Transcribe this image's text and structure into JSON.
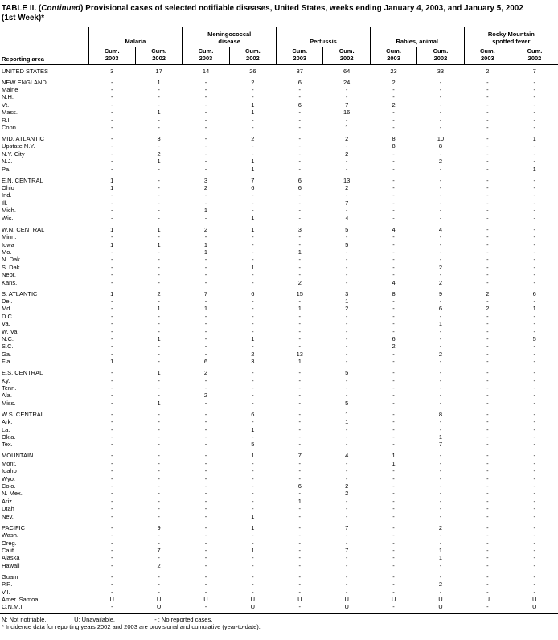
{
  "title": {
    "pre": "TABLE II. (",
    "continued": "Continued",
    "post": ") Provisional cases of selected notifiable diseases, United States, weeks ending January 4, 2003, and January 5, 2002",
    "line2": "(1st Week)*"
  },
  "header": {
    "reporting_area_label": "Reporting area",
    "groups": [
      {
        "label": "Malaria",
        "lines": [
          "Malaria"
        ]
      },
      {
        "label": "Meningococcal disease",
        "lines": [
          "Meningococcal",
          "disease"
        ]
      },
      {
        "label": "Pertussis",
        "lines": [
          "Pertussis"
        ]
      },
      {
        "label": "Rabies, animal",
        "lines": [
          "Rabies, animal"
        ]
      },
      {
        "label": "Rocky Mountain spotted fever",
        "lines": [
          "Rocky Mountain",
          "spotted fever"
        ]
      }
    ],
    "subcolumns": [
      {
        "lines": [
          "Cum.",
          "2003"
        ]
      },
      {
        "lines": [
          "Cum.",
          "2002"
        ]
      }
    ]
  },
  "sections": [
    {
      "rows": [
        {
          "area": "UNITED STATES",
          "values": [
            "3",
            "17",
            "14",
            "26",
            "37",
            "64",
            "23",
            "33",
            "2",
            "7"
          ]
        }
      ]
    },
    {
      "rows": [
        {
          "area": "NEW ENGLAND",
          "values": [
            "-",
            "1",
            "-",
            "2",
            "6",
            "24",
            "2",
            "-",
            "-",
            "-"
          ]
        },
        {
          "area": "Maine",
          "values": [
            "-",
            "-",
            "-",
            "-",
            "-",
            "-",
            "-",
            "-",
            "-",
            "-"
          ]
        },
        {
          "area": "N.H.",
          "values": [
            "-",
            "-",
            "-",
            "-",
            "-",
            "-",
            "-",
            "-",
            "-",
            "-"
          ]
        },
        {
          "area": "Vt.",
          "values": [
            "-",
            "-",
            "-",
            "1",
            "6",
            "7",
            "2",
            "-",
            "-",
            "-"
          ]
        },
        {
          "area": "Mass.",
          "values": [
            "-",
            "1",
            "-",
            "1",
            "-",
            "16",
            "-",
            "-",
            "-",
            "-"
          ]
        },
        {
          "area": "R.I.",
          "values": [
            "-",
            "-",
            "-",
            "-",
            "-",
            "-",
            "-",
            "-",
            "-",
            "-"
          ]
        },
        {
          "area": "Conn.",
          "values": [
            "-",
            "-",
            "-",
            "-",
            "-",
            "1",
            "-",
            "-",
            "-",
            "-"
          ]
        }
      ]
    },
    {
      "rows": [
        {
          "area": "MID. ATLANTIC",
          "values": [
            "-",
            "3",
            "-",
            "2",
            "-",
            "2",
            "8",
            "10",
            "-",
            "1"
          ]
        },
        {
          "area": "Upstate N.Y.",
          "values": [
            "-",
            "-",
            "-",
            "-",
            "-",
            "-",
            "8",
            "8",
            "-",
            "-"
          ]
        },
        {
          "area": "N.Y. City",
          "values": [
            "-",
            "2",
            "-",
            "-",
            "-",
            "2",
            "-",
            "-",
            "-",
            "-"
          ]
        },
        {
          "area": "N.J.",
          "values": [
            "-",
            "1",
            "-",
            "1",
            "-",
            "-",
            "-",
            "2",
            "-",
            "-"
          ]
        },
        {
          "area": "Pa.",
          "values": [
            "-",
            "-",
            "-",
            "1",
            "-",
            "-",
            "-",
            "-",
            "-",
            "1"
          ]
        }
      ]
    },
    {
      "rows": [
        {
          "area": "E.N. CENTRAL",
          "values": [
            "1",
            "-",
            "3",
            "7",
            "6",
            "13",
            "-",
            "-",
            "-",
            "-"
          ]
        },
        {
          "area": "Ohio",
          "values": [
            "1",
            "-",
            "2",
            "6",
            "6",
            "2",
            "-",
            "-",
            "-",
            "-"
          ]
        },
        {
          "area": "Ind.",
          "values": [
            "-",
            "-",
            "-",
            "-",
            "-",
            "-",
            "-",
            "-",
            "-",
            "-"
          ]
        },
        {
          "area": "Ill.",
          "values": [
            "-",
            "-",
            "-",
            "-",
            "-",
            "7",
            "-",
            "-",
            "-",
            "-"
          ]
        },
        {
          "area": "Mich.",
          "values": [
            "-",
            "-",
            "1",
            "-",
            "-",
            "-",
            "-",
            "-",
            "-",
            "-"
          ]
        },
        {
          "area": "Wis.",
          "values": [
            "-",
            "-",
            "-",
            "1",
            "-",
            "4",
            "-",
            "-",
            "-",
            "-"
          ]
        }
      ]
    },
    {
      "rows": [
        {
          "area": "W.N. CENTRAL",
          "values": [
            "1",
            "1",
            "2",
            "1",
            "3",
            "5",
            "4",
            "4",
            "-",
            "-"
          ]
        },
        {
          "area": "Minn.",
          "values": [
            "-",
            "-",
            "-",
            "-",
            "-",
            "-",
            "-",
            "-",
            "-",
            "-"
          ]
        },
        {
          "area": "Iowa",
          "values": [
            "1",
            "1",
            "1",
            "-",
            "-",
            "5",
            "-",
            "-",
            "-",
            "-"
          ]
        },
        {
          "area": "Mo.",
          "values": [
            "-",
            "-",
            "1",
            "-",
            "1",
            "-",
            "-",
            "-",
            "-",
            "-"
          ]
        },
        {
          "area": "N. Dak.",
          "values": [
            "-",
            "-",
            "-",
            "-",
            "-",
            "-",
            "-",
            "-",
            "-",
            "-"
          ]
        },
        {
          "area": "S. Dak.",
          "values": [
            "-",
            "-",
            "-",
            "1",
            "-",
            "-",
            "-",
            "2",
            "-",
            "-"
          ]
        },
        {
          "area": "Nebr.",
          "values": [
            "-",
            "-",
            "-",
            "-",
            "-",
            "-",
            "-",
            "-",
            "-",
            "-"
          ]
        },
        {
          "area": "Kans.",
          "values": [
            "-",
            "-",
            "-",
            "-",
            "2",
            "-",
            "4",
            "2",
            "-",
            "-"
          ]
        }
      ]
    },
    {
      "rows": [
        {
          "area": "S. ATLANTIC",
          "values": [
            "1",
            "2",
            "7",
            "6",
            "15",
            "3",
            "8",
            "9",
            "2",
            "6"
          ]
        },
        {
          "area": "Del.",
          "values": [
            "-",
            "-",
            "-",
            "-",
            "-",
            "1",
            "-",
            "-",
            "-",
            "-"
          ]
        },
        {
          "area": "Md.",
          "values": [
            "-",
            "1",
            "1",
            "-",
            "1",
            "2",
            "-",
            "6",
            "2",
            "1"
          ]
        },
        {
          "area": "D.C.",
          "values": [
            "-",
            "-",
            "-",
            "-",
            "-",
            "-",
            "-",
            "-",
            "-",
            "-"
          ]
        },
        {
          "area": "Va.",
          "values": [
            "-",
            "-",
            "-",
            "-",
            "-",
            "-",
            "-",
            "1",
            "-",
            "-"
          ]
        },
        {
          "area": "W. Va.",
          "values": [
            "-",
            "-",
            "-",
            "-",
            "-",
            "-",
            "-",
            "-",
            "-",
            "-"
          ]
        },
        {
          "area": "N.C.",
          "values": [
            "-",
            "1",
            "-",
            "1",
            "-",
            "-",
            "6",
            "-",
            "-",
            "5"
          ]
        },
        {
          "area": "S.C.",
          "values": [
            "-",
            "-",
            "-",
            "-",
            "-",
            "-",
            "2",
            "-",
            "-",
            "-"
          ]
        },
        {
          "area": "Ga.",
          "values": [
            "-",
            "-",
            "-",
            "2",
            "13",
            "-",
            "-",
            "2",
            "-",
            "-"
          ]
        },
        {
          "area": "Fla.",
          "values": [
            "1",
            "-",
            "6",
            "3",
            "1",
            "-",
            "-",
            "-",
            "-",
            "-"
          ]
        }
      ]
    },
    {
      "rows": [
        {
          "area": "E.S. CENTRAL",
          "values": [
            "-",
            "1",
            "2",
            "-",
            "-",
            "5",
            "-",
            "-",
            "-",
            "-"
          ]
        },
        {
          "area": "Ky.",
          "values": [
            "-",
            "-",
            "-",
            "-",
            "-",
            "-",
            "-",
            "-",
            "-",
            "-"
          ]
        },
        {
          "area": "Tenn.",
          "values": [
            "-",
            "-",
            "-",
            "-",
            "-",
            "-",
            "-",
            "-",
            "-",
            "-"
          ]
        },
        {
          "area": "Ala.",
          "values": [
            "-",
            "-",
            "2",
            "-",
            "-",
            "-",
            "-",
            "-",
            "-",
            "-"
          ]
        },
        {
          "area": "Miss.",
          "values": [
            "-",
            "1",
            "-",
            "-",
            "-",
            "5",
            "-",
            "-",
            "-",
            "-"
          ]
        }
      ]
    },
    {
      "rows": [
        {
          "area": "W.S. CENTRAL",
          "values": [
            "-",
            "-",
            "-",
            "6",
            "-",
            "1",
            "-",
            "8",
            "-",
            "-"
          ]
        },
        {
          "area": "Ark.",
          "values": [
            "-",
            "-",
            "-",
            "-",
            "-",
            "1",
            "-",
            "-",
            "-",
            "-"
          ]
        },
        {
          "area": "La.",
          "values": [
            "-",
            "-",
            "-",
            "1",
            "-",
            "-",
            "-",
            "-",
            "-",
            "-"
          ]
        },
        {
          "area": "Okla.",
          "values": [
            "-",
            "-",
            "-",
            "-",
            "-",
            "-",
            "-",
            "1",
            "-",
            "-"
          ]
        },
        {
          "area": "Tex.",
          "values": [
            "-",
            "-",
            "-",
            "5",
            "-",
            "-",
            "-",
            "7",
            "-",
            "-"
          ]
        }
      ]
    },
    {
      "rows": [
        {
          "area": "MOUNTAIN",
          "values": [
            "-",
            "-",
            "-",
            "1",
            "7",
            "4",
            "1",
            "-",
            "-",
            "-"
          ]
        },
        {
          "area": "Mont.",
          "values": [
            "-",
            "-",
            "-",
            "-",
            "-",
            "-",
            "1",
            "-",
            "-",
            "-"
          ]
        },
        {
          "area": "Idaho",
          "values": [
            "-",
            "-",
            "-",
            "-",
            "-",
            "-",
            "-",
            "-",
            "-",
            "-"
          ]
        },
        {
          "area": "Wyo.",
          "values": [
            "-",
            "-",
            "-",
            "-",
            "-",
            "-",
            "-",
            "-",
            "-",
            "-"
          ]
        },
        {
          "area": "Colo.",
          "values": [
            "-",
            "-",
            "-",
            "-",
            "6",
            "2",
            "-",
            "-",
            "-",
            "-"
          ]
        },
        {
          "area": "N. Mex.",
          "values": [
            "-",
            "-",
            "-",
            "-",
            "-",
            "2",
            "-",
            "-",
            "-",
            "-"
          ]
        },
        {
          "area": "Ariz.",
          "values": [
            "-",
            "-",
            "-",
            "-",
            "1",
            "-",
            "-",
            "-",
            "-",
            "-"
          ]
        },
        {
          "area": "Utah",
          "values": [
            "-",
            "-",
            "-",
            "-",
            "-",
            "-",
            "-",
            "-",
            "-",
            "-"
          ]
        },
        {
          "area": "Nev.",
          "values": [
            "-",
            "-",
            "-",
            "1",
            "-",
            "-",
            "-",
            "-",
            "-",
            "-"
          ]
        }
      ]
    },
    {
      "rows": [
        {
          "area": "PACIFIC",
          "values": [
            "-",
            "9",
            "-",
            "1",
            "-",
            "7",
            "-",
            "2",
            "-",
            "-"
          ]
        },
        {
          "area": "Wash.",
          "values": [
            "-",
            "-",
            "-",
            "-",
            "-",
            "-",
            "-",
            "-",
            "-",
            "-"
          ]
        },
        {
          "area": "Oreg.",
          "values": [
            "-",
            "-",
            "-",
            "-",
            "-",
            "-",
            "-",
            "-",
            "-",
            "-"
          ]
        },
        {
          "area": "Calif.",
          "values": [
            "-",
            "7",
            "-",
            "1",
            "-",
            "7",
            "-",
            "1",
            "-",
            "-"
          ]
        },
        {
          "area": "Alaska",
          "values": [
            "-",
            "-",
            "-",
            "-",
            "-",
            "-",
            "-",
            "1",
            "-",
            "-"
          ]
        },
        {
          "area": "Hawaii",
          "values": [
            "-",
            "2",
            "-",
            "-",
            "-",
            "-",
            "-",
            "-",
            "-",
            "-"
          ]
        }
      ]
    },
    {
      "rows": [
        {
          "area": "Guam",
          "values": [
            "-",
            "-",
            "-",
            "-",
            "-",
            "-",
            "-",
            "-",
            "-",
            "-"
          ]
        },
        {
          "area": "P.R.",
          "values": [
            "-",
            "-",
            "-",
            "-",
            "-",
            "-",
            "-",
            "2",
            "-",
            "-"
          ]
        },
        {
          "area": "V.I.",
          "values": [
            "-",
            "-",
            "-",
            "-",
            "-",
            "-",
            "-",
            "-",
            "-",
            "-"
          ]
        },
        {
          "area": "Amer. Samoa",
          "values": [
            "U",
            "U",
            "U",
            "U",
            "U",
            "U",
            "U",
            "U",
            "U",
            "U"
          ]
        },
        {
          "area": "C.N.M.I.",
          "values": [
            "-",
            "U",
            "-",
            "U",
            "-",
            "U",
            "-",
            "U",
            "-",
            "U"
          ]
        }
      ]
    }
  ],
  "footnotes": {
    "legend": [
      "N: Not notifiable.",
      "U: Unavailable.",
      "- : No reported cases."
    ],
    "note": "* Incidence data for reporting years 2002 and 2003 are provisional and cumulative (year-to-date)."
  }
}
